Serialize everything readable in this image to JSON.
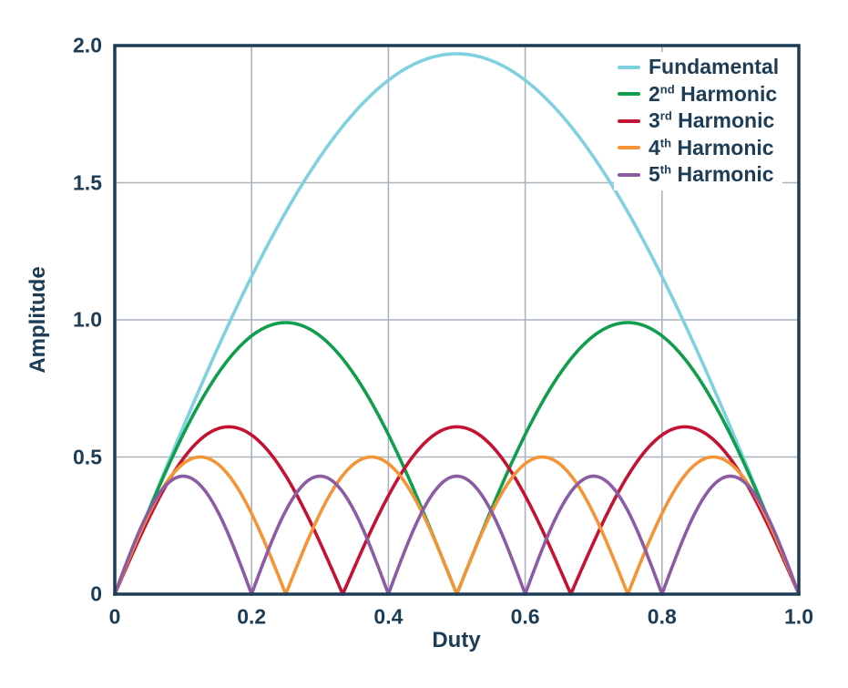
{
  "figure": {
    "background": "#ffffff",
    "text_color": "#1d3c55",
    "frame_color": "#1d3c55",
    "grid_color": "#aab4bd"
  },
  "chart_data": {
    "type": "line",
    "title": "",
    "xlabel": "Duty",
    "ylabel": "Amplitude",
    "xlim": [
      0,
      1
    ],
    "ylim": [
      0,
      2
    ],
    "xticks": [
      0,
      0.2,
      0.4,
      0.6,
      0.8,
      1
    ],
    "xtick_labels": [
      "0",
      "0.2",
      "0.4",
      "0.6",
      "0.8",
      "1.0"
    ],
    "yticks": [
      0,
      0.5,
      1,
      1.5,
      2
    ],
    "ytick_labels": [
      "0",
      "0.5",
      "1.0",
      "1.5",
      "2.0"
    ],
    "grid": true,
    "legend_position": "top-right",
    "formula": "amplitude(duty) = peak * |sin(harmonic * PI * duty)|",
    "series": [
      {
        "name": "Fundamental",
        "legend": {
          "pre": "Fundamental",
          "sup": "",
          "post": ""
        },
        "color": "#7fd1e0",
        "harmonic": 1,
        "peak": 1.97,
        "peaks_at_duty": [
          0.5
        ],
        "zeros_at_duty": [
          0,
          1
        ]
      },
      {
        "name": "2nd Harmonic",
        "legend": {
          "pre": "2",
          "sup": "nd",
          "post": " Harmonic"
        },
        "color": "#109e4d",
        "harmonic": 2,
        "peak": 0.99,
        "peaks_at_duty": [
          0.25,
          0.75
        ],
        "zeros_at_duty": [
          0,
          0.5,
          1
        ]
      },
      {
        "name": "3rd Harmonic",
        "legend": {
          "pre": "3",
          "sup": "rd",
          "post": " Harmonic"
        },
        "color": "#c41233",
        "harmonic": 3,
        "peak": 0.61,
        "peaks_at_duty": [
          0.167,
          0.5,
          0.833
        ],
        "zeros_at_duty": [
          0,
          0.333,
          0.667,
          1
        ]
      },
      {
        "name": "4th Harmonic",
        "legend": {
          "pre": "4",
          "sup": "th",
          "post": " Harmonic"
        },
        "color": "#f49436",
        "harmonic": 4,
        "peak": 0.5,
        "peaks_at_duty": [
          0.125,
          0.375,
          0.625,
          0.875
        ],
        "zeros_at_duty": [
          0,
          0.25,
          0.5,
          0.75,
          1
        ]
      },
      {
        "name": "5th Harmonic",
        "legend": {
          "pre": "5",
          "sup": "th",
          "post": " Harmonic"
        },
        "color": "#8b5ba4",
        "harmonic": 5,
        "peak": 0.43,
        "peaks_at_duty": [
          0.1,
          0.3,
          0.5,
          0.7,
          0.9
        ],
        "zeros_at_duty": [
          0,
          0.2,
          0.4,
          0.6,
          0.8,
          1
        ]
      }
    ]
  }
}
